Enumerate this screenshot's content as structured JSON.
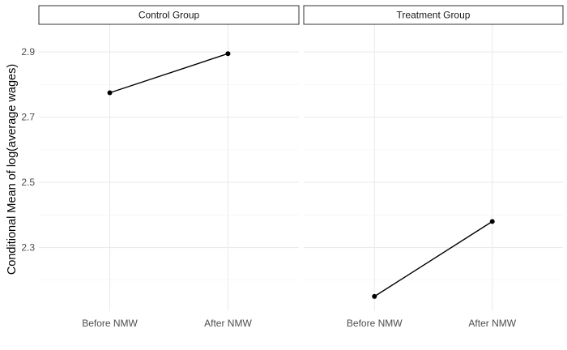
{
  "chart_data": {
    "type": "line",
    "facet_by": "group",
    "ylabel": "Conditional Mean of log(average wages)",
    "xlabel": "",
    "categories": [
      "Before NMW",
      "After NMW"
    ],
    "ylim": [
      2.105,
      2.985
    ],
    "yticks": [
      2.3,
      2.5,
      2.7,
      2.9
    ],
    "ytick_labels": [
      "2.3",
      "2.5",
      "2.7",
      "2.9"
    ],
    "grid": true,
    "legend": "none",
    "panels": [
      {
        "strip": "Control Group",
        "values": [
          2.775,
          2.895
        ]
      },
      {
        "strip": "Treatment Group",
        "values": [
          2.15,
          2.38
        ]
      }
    ]
  }
}
